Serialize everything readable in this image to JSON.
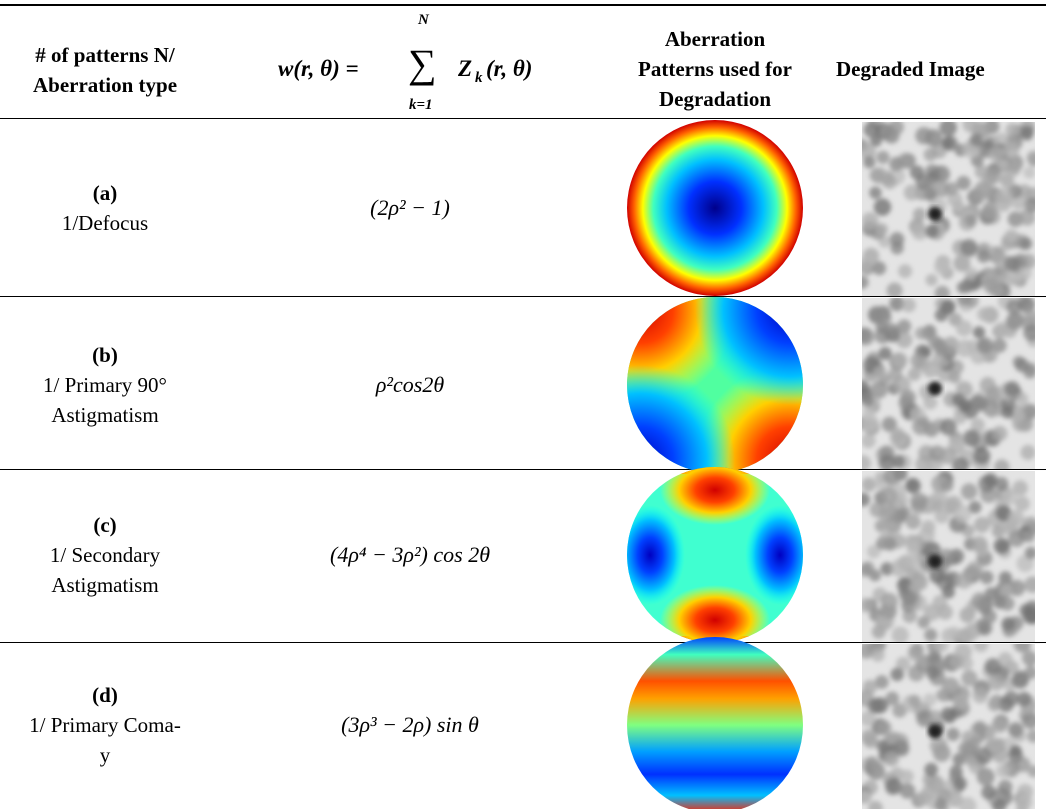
{
  "header": {
    "col1": [
      "# of patterns N/",
      "Aberration type"
    ],
    "formula": {
      "lhs": "w(r, θ) =",
      "sum": "∑",
      "upper": "N",
      "lower": "k=1",
      "term": "Z",
      "sub": "k",
      "args": "(r, θ)"
    },
    "col3": [
      "Aberration",
      "Patterns used for",
      "Degradation"
    ],
    "col4": "Degraded Image"
  },
  "rows": [
    {
      "label": "(a)",
      "type": [
        "1/Defocus"
      ],
      "formula": "(2ρ² − 1)"
    },
    {
      "label": "(b)",
      "type": [
        "1/ Primary 90°",
        "Astigmatism"
      ],
      "formula": "ρ²cos2θ"
    },
    {
      "label": "(c)",
      "type": [
        "1/ Secondary",
        "Astigmatism"
      ],
      "formula": "(4ρ⁴ − 3ρ²) cos 2θ"
    },
    {
      "label": "(d)",
      "type": [
        "1/ Primary Coma-",
        "y"
      ],
      "formula": "(3ρ³ − 2ρ) sin θ"
    }
  ]
}
